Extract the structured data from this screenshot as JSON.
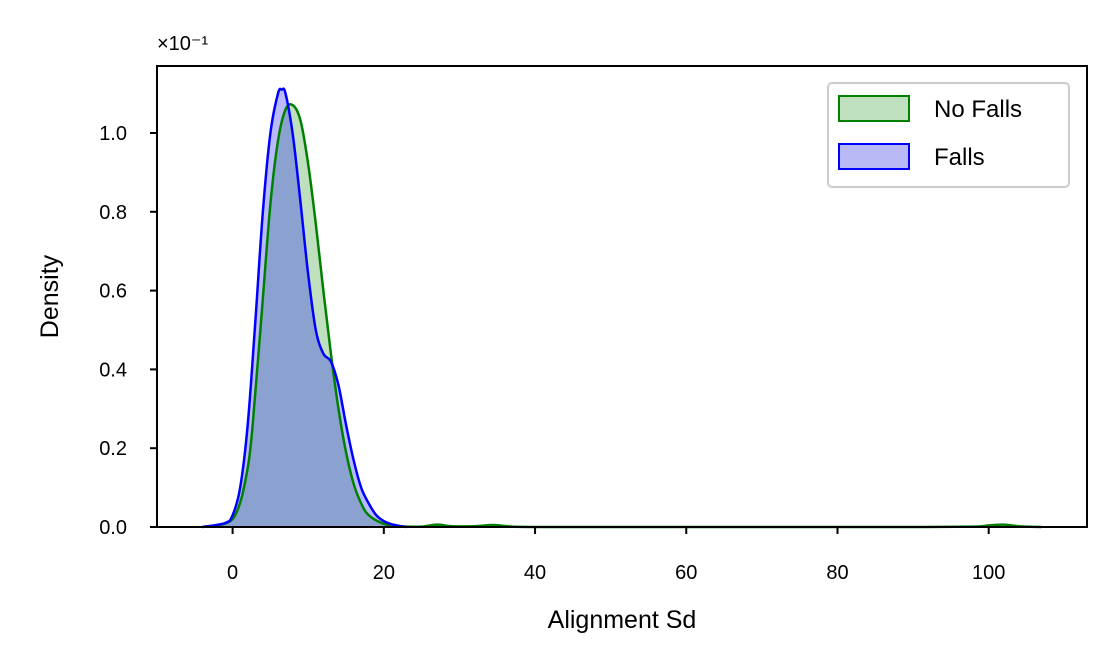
{
  "chart_data": {
    "type": "area",
    "xlabel": "Alignment Sd",
    "ylabel": "Density",
    "scale_note": "×10⁻¹",
    "xlim": [
      -10,
      113
    ],
    "ylim": [
      0,
      1.17
    ],
    "xticks": [
      0,
      20,
      40,
      60,
      80,
      100
    ],
    "yticks": [
      0.0,
      0.2,
      0.4,
      0.6,
      0.8,
      1.0
    ],
    "ytick_labels": [
      "0.0",
      "0.2",
      "0.4",
      "0.6",
      "0.8",
      "1.0"
    ],
    "grid": false,
    "legend_position": "top-right",
    "series": [
      {
        "name": "No Falls",
        "color": "#008000",
        "fill": "#bfe0bf",
        "x": [
          -4,
          0,
          2,
          3,
          4,
          5,
          6,
          7,
          8,
          9,
          10,
          11,
          12,
          13,
          14,
          15,
          16,
          17,
          18,
          20,
          22,
          25,
          27,
          29,
          32,
          34.5,
          37,
          40,
          50,
          60,
          70,
          80,
          90,
          98,
          100,
          102,
          104,
          107
        ],
        "y": [
          0.0,
          0.02,
          0.15,
          0.34,
          0.58,
          0.82,
          0.98,
          1.06,
          1.07,
          1.03,
          0.92,
          0.77,
          0.6,
          0.44,
          0.3,
          0.19,
          0.11,
          0.06,
          0.03,
          0.008,
          0.002,
          0.001,
          0.006,
          0.002,
          0.002,
          0.005,
          0.001,
          0.0,
          0.0,
          0.0,
          0.0,
          0.0,
          0.0,
          0.001,
          0.004,
          0.006,
          0.002,
          0.0
        ]
      },
      {
        "name": "Falls",
        "color": "#0000ff",
        "fill": "#b9b9f5",
        "x": [
          -4,
          -1,
          0,
          1,
          2,
          3,
          4,
          5,
          6,
          6.5,
          7,
          8,
          9,
          10,
          11,
          12,
          13,
          14,
          15,
          16,
          17,
          18,
          19,
          20,
          21,
          22,
          23
        ],
        "y": [
          0.0,
          0.01,
          0.03,
          0.1,
          0.26,
          0.52,
          0.8,
          1.0,
          1.1,
          1.11,
          1.1,
          0.99,
          0.82,
          0.64,
          0.5,
          0.44,
          0.42,
          0.36,
          0.26,
          0.17,
          0.1,
          0.06,
          0.03,
          0.015,
          0.007,
          0.003,
          0.0
        ]
      }
    ]
  }
}
